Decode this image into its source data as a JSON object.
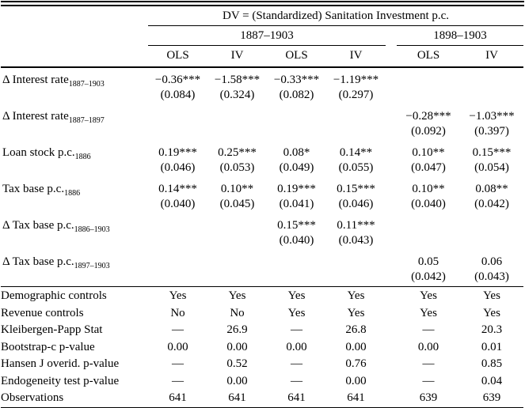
{
  "table": {
    "dv_header": "DV = (Standardized) Sanitation Investment p.c.",
    "groups": [
      {
        "label": "1887–1903",
        "span": 4
      },
      {
        "label": "1898–1903",
        "span": 2
      }
    ],
    "methods": [
      "OLS",
      "IV",
      "OLS",
      "IV",
      "OLS",
      "IV"
    ],
    "coef_rows": [
      {
        "label": "Δ Interest rate",
        "subscript": "1887–1903",
        "estimates": [
          "−0.36***",
          "−1.58***",
          "−0.33***",
          "−1.19***",
          "",
          ""
        ],
        "std_errors": [
          "(0.084)",
          "(0.324)",
          "(0.082)",
          "(0.297)",
          "",
          ""
        ]
      },
      {
        "label": "Δ Interest rate",
        "subscript": "1887–1897",
        "estimates": [
          "",
          "",
          "",
          "",
          "−0.28***",
          "−1.03***"
        ],
        "std_errors": [
          "",
          "",
          "",
          "",
          "(0.092)",
          "(0.397)"
        ]
      },
      {
        "label": "Loan stock p.c.",
        "subscript": "1886",
        "estimates": [
          "0.19***",
          "0.25***",
          "0.08*",
          "0.14**",
          "0.10**",
          "0.15***"
        ],
        "std_errors": [
          "(0.046)",
          "(0.053)",
          "(0.049)",
          "(0.055)",
          "(0.047)",
          "(0.054)"
        ]
      },
      {
        "label": "Tax base p.c.",
        "subscript": "1886",
        "estimates": [
          "0.14***",
          "0.10**",
          "0.19***",
          "0.15***",
          "0.10**",
          "0.08**"
        ],
        "std_errors": [
          "(0.040)",
          "(0.045)",
          "(0.041)",
          "(0.046)",
          "(0.040)",
          "(0.042)"
        ]
      },
      {
        "label": "Δ Tax base p.c.",
        "subscript": "1886–1903",
        "estimates": [
          "",
          "",
          "0.15***",
          "0.11***",
          "",
          ""
        ],
        "std_errors": [
          "",
          "",
          "(0.040)",
          "(0.043)",
          "",
          ""
        ]
      },
      {
        "label": "Δ Tax base p.c.",
        "subscript": "1897–1903",
        "estimates": [
          "",
          "",
          "",
          "",
          "0.05",
          "0.06"
        ],
        "std_errors": [
          "",
          "",
          "",
          "",
          "(0.042)",
          "(0.043)"
        ]
      }
    ],
    "stat_rows": [
      {
        "label": "Demographic controls",
        "values": [
          "Yes",
          "Yes",
          "Yes",
          "Yes",
          "Yes",
          "Yes"
        ]
      },
      {
        "label": "Revenue controls",
        "values": [
          "No",
          "No",
          "Yes",
          "Yes",
          "Yes",
          "Yes"
        ]
      },
      {
        "label": "Kleibergen-Papp Stat",
        "values": [
          "—",
          "26.9",
          "—",
          "26.8",
          "—",
          "20.3"
        ]
      },
      {
        "label": "Bootstrap-c p-value",
        "values": [
          "0.00",
          "0.00",
          "0.00",
          "0.00",
          "0.00",
          "0.01"
        ]
      },
      {
        "label": "Hansen J overid. p-value",
        "values": [
          "—",
          "0.52",
          "—",
          "0.76",
          "—",
          "0.85"
        ]
      },
      {
        "label": "Endogeneity test p-value",
        "values": [
          "—",
          "0.00",
          "—",
          "0.00",
          "—",
          "0.04"
        ]
      },
      {
        "label": "Observations",
        "values": [
          "641",
          "641",
          "641",
          "641",
          "639",
          "639"
        ]
      }
    ]
  }
}
